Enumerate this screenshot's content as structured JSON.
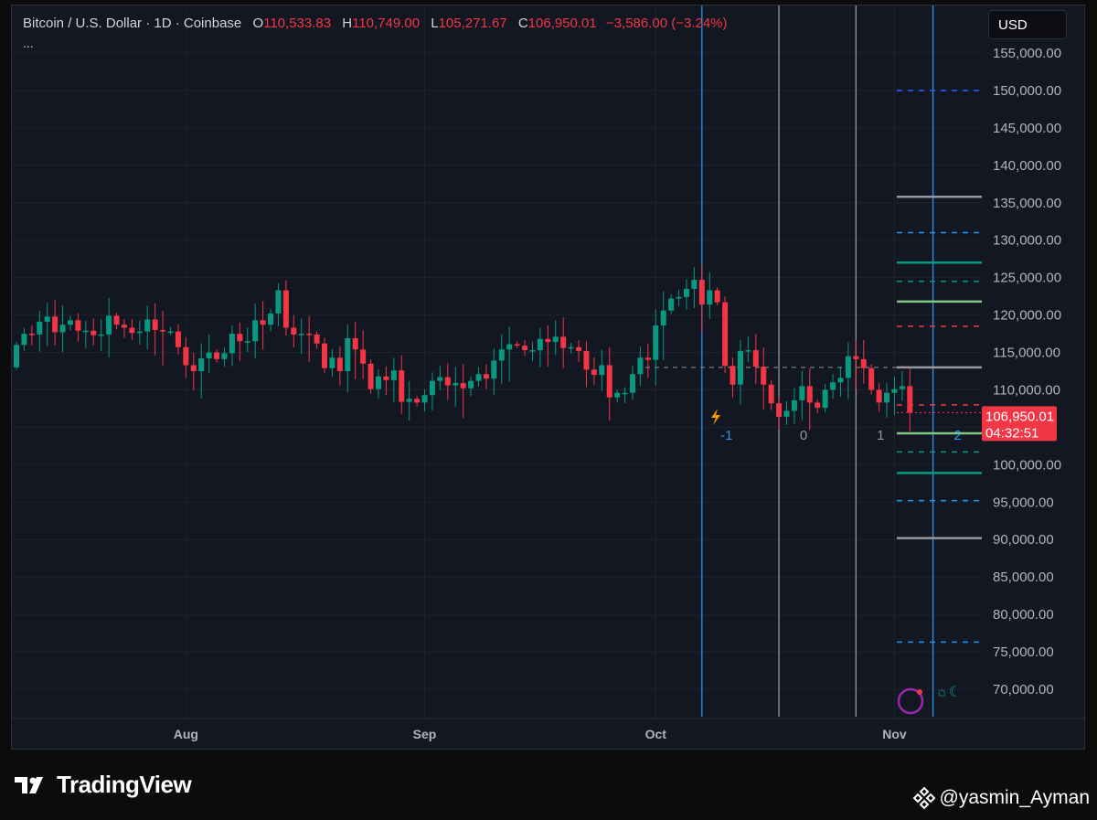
{
  "header": {
    "symbol": "Bitcoin / U.S. Dollar · 1D · Coinbase",
    "open_label": "O",
    "open": "110,533.83",
    "high_label": "H",
    "high": "110,749.00",
    "low_label": "L",
    "low": "105,271.67",
    "close_label": "C",
    "close": "106,950.01",
    "change": "−3,586.00 (−3.24%)",
    "more": "..."
  },
  "currency_button": "USD",
  "price_label": {
    "price": "106,950.01",
    "countdown": "04:32:51",
    "color": "#f23645"
  },
  "colors": {
    "up": "#089981",
    "down": "#f23645",
    "background": "#131722",
    "grid": "#1e222d",
    "axis_text": "#b2b5be"
  },
  "footer": {
    "brand": "TradingView",
    "user": "@yasmin_Ayman"
  },
  "chart_data": {
    "type": "candlestick",
    "x_start_date": "2025-07-10",
    "x_ticks": [
      {
        "date": "2025-08-01",
        "label": "Aug"
      },
      {
        "date": "2025-09-01",
        "label": "Sep"
      },
      {
        "date": "2025-10-01",
        "label": "Oct"
      },
      {
        "date": "2025-11-01",
        "label": "Nov"
      }
    ],
    "ylim": [
      66000,
      158000
    ],
    "y_ticks": [
      155000,
      150000,
      145000,
      140000,
      135000,
      130000,
      125000,
      120000,
      115000,
      110000,
      100000,
      95000,
      90000,
      85000,
      80000,
      75000,
      70000
    ],
    "first_open": 113000,
    "close": [
      116000,
      117500,
      117400,
      119100,
      119800,
      117700,
      118700,
      119300,
      117900,
      117900,
      117300,
      117400,
      119900,
      118700,
      118300,
      117600,
      117800,
      119400,
      118000,
      117800,
      117800,
      115700,
      113300,
      112500,
      114200,
      115000,
      114100,
      114900,
      117500,
      116500,
      116500,
      119300,
      118700,
      120200,
      123300,
      118300,
      117400,
      117500,
      117400,
      116200,
      112900,
      114300,
      112500,
      116900,
      115400,
      113500,
      110100,
      111800,
      111300,
      112600,
      108400,
      108800,
      108300,
      109300,
      111200,
      111700,
      110600,
      110900,
      110200,
      111200,
      112100,
      111500,
      113900,
      115400,
      116100,
      115900,
      115300,
      115300,
      116800,
      116400,
      117100,
      115600,
      115700,
      115200,
      112700,
      112000,
      113300,
      109000,
      109600,
      109600,
      112100,
      114300,
      114000,
      118600,
      120600,
      122200,
      122400,
      123500,
      124700,
      121400,
      123300,
      121700,
      113200,
      110700,
      115200,
      115300,
      113100,
      110700,
      108200,
      106400,
      107200,
      108600,
      110500,
      108300,
      107600,
      110000,
      111000,
      111600,
      114500,
      114100,
      112900,
      110000,
      108300,
      109600,
      110100,
      110500,
      106950
    ],
    "levels": [
      {
        "price": 150000,
        "style": "dashed",
        "color": "#2962ff"
      },
      {
        "price": 135800,
        "style": "solid",
        "color": "#9598a1"
      },
      {
        "price": 131000,
        "style": "dashed",
        "color": "#2196f3"
      },
      {
        "price": 127000,
        "style": "solid",
        "color": "#089981"
      },
      {
        "price": 124500,
        "style": "dashed",
        "color": "#089981"
      },
      {
        "price": 121800,
        "style": "solid",
        "color": "#81c784"
      },
      {
        "price": 118500,
        "style": "dashed",
        "color": "#f23645"
      },
      {
        "price": 113000,
        "style": "solid",
        "color": "#9598a1"
      },
      {
        "price": 108000,
        "style": "dashed",
        "color": "#f23645"
      },
      {
        "price": 104200,
        "style": "solid",
        "color": "#81c784"
      },
      {
        "price": 101700,
        "style": "dashed",
        "color": "#089981"
      },
      {
        "price": 98900,
        "style": "solid",
        "color": "#089981"
      },
      {
        "price": 95200,
        "style": "dashed",
        "color": "#2196f3"
      },
      {
        "price": 90200,
        "style": "solid",
        "color": "#9598a1"
      },
      {
        "price": 76300,
        "style": "dashed",
        "color": "#2196f3"
      }
    ],
    "vertical_lines": [
      {
        "date": "2025-10-07",
        "color": "#2196f3",
        "label": "-1"
      },
      {
        "date": "2025-10-17",
        "color": "#9598a1",
        "label": "0"
      },
      {
        "date": "2025-10-27",
        "color": "#9598a1",
        "label": "1"
      },
      {
        "date": "2025-11-06",
        "color": "#2196f3",
        "label": "2"
      }
    ]
  }
}
